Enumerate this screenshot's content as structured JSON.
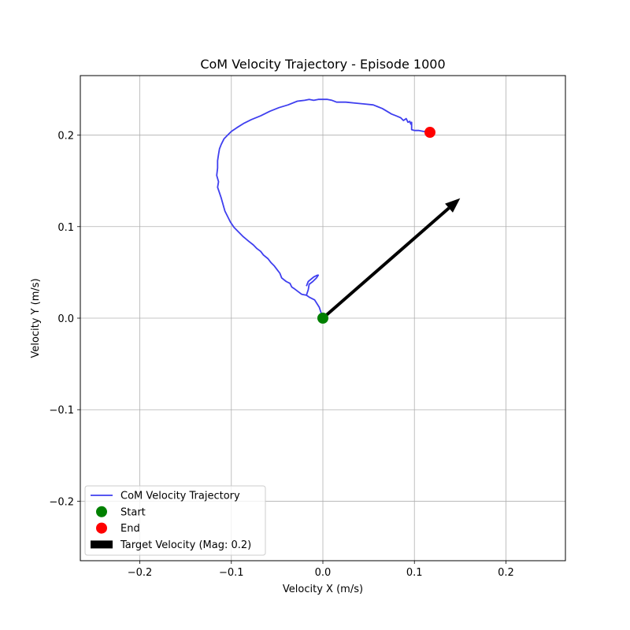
{
  "chart_data": {
    "type": "line",
    "title": "CoM Velocity Trajectory - Episode 1000",
    "xlabel": "Velocity X (m/s)",
    "ylabel": "Velocity Y (m/s)",
    "xlim": [
      -0.265,
      0.265
    ],
    "ylim": [
      -0.265,
      0.265
    ],
    "xticks": [
      -0.2,
      -0.1,
      0.0,
      0.1,
      0.2
    ],
    "xtick_labels": [
      "−0.2",
      "−0.1",
      "0.0",
      "0.1",
      "0.2"
    ],
    "yticks": [
      -0.2,
      -0.1,
      0.0,
      0.1,
      0.2
    ],
    "ytick_labels": [
      "−0.2",
      "−0.1",
      "0.0",
      "0.1",
      "0.2"
    ],
    "grid": true,
    "legend_position": "lower-left",
    "series": [
      {
        "name": "CoM Velocity Trajectory",
        "kind": "line",
        "color": "#3f3fef",
        "x": [
          0.0,
          -0.004,
          -0.009,
          -0.015,
          -0.018,
          -0.023,
          -0.027,
          -0.031,
          -0.034,
          -0.036,
          -0.04,
          -0.045,
          -0.047,
          -0.05,
          -0.053,
          -0.057,
          -0.06,
          -0.065,
          -0.068,
          -0.072,
          -0.076,
          -0.081,
          -0.087,
          -0.092,
          -0.097,
          -0.101,
          -0.104,
          -0.107,
          -0.109,
          -0.111,
          -0.113,
          -0.115,
          -0.114,
          -0.116,
          -0.115,
          -0.115,
          -0.114,
          -0.113,
          -0.111,
          -0.108,
          -0.104,
          -0.1,
          -0.094,
          -0.086,
          -0.078,
          -0.068,
          -0.058,
          -0.048,
          -0.038,
          -0.028,
          -0.02,
          -0.015,
          -0.01,
          -0.005,
          0.0,
          0.005,
          0.01,
          0.015,
          0.025,
          0.035,
          0.045,
          0.055,
          0.06,
          0.065,
          0.07,
          0.075,
          0.08,
          0.085,
          0.088,
          0.091,
          0.093,
          0.095,
          0.096,
          0.097,
          0.097,
          0.1,
          0.105,
          0.11,
          0.117
        ],
        "y": [
          0.0,
          0.012,
          0.02,
          0.023,
          0.025,
          0.026,
          0.029,
          0.032,
          0.034,
          0.038,
          0.04,
          0.044,
          0.049,
          0.053,
          0.057,
          0.061,
          0.065,
          0.069,
          0.073,
          0.076,
          0.08,
          0.084,
          0.089,
          0.094,
          0.099,
          0.105,
          0.111,
          0.117,
          0.124,
          0.131,
          0.137,
          0.143,
          0.149,
          0.156,
          0.164,
          0.172,
          0.179,
          0.185,
          0.19,
          0.196,
          0.2,
          0.204,
          0.208,
          0.213,
          0.217,
          0.221,
          0.226,
          0.23,
          0.233,
          0.237,
          0.238,
          0.239,
          0.238,
          0.239,
          0.239,
          0.239,
          0.238,
          0.236,
          0.236,
          0.235,
          0.234,
          0.233,
          0.231,
          0.229,
          0.226,
          0.223,
          0.221,
          0.219,
          0.216,
          0.218,
          0.214,
          0.215,
          0.212,
          0.214,
          0.206,
          0.205,
          0.205,
          0.204,
          0.203
        ]
      },
      {
        "name": "CoM Velocity Trajectory (hook)",
        "kind": "line",
        "color": "#3f3fef",
        "x": [
          -0.018,
          -0.016,
          -0.015,
          -0.011,
          -0.007,
          -0.005,
          -0.006,
          -0.01,
          -0.016,
          -0.018
        ],
        "y": [
          0.025,
          0.031,
          0.037,
          0.04,
          0.044,
          0.047,
          0.047,
          0.045,
          0.04,
          0.035
        ]
      },
      {
        "name": "Start",
        "kind": "marker",
        "color": "#008000",
        "x": [
          0.0
        ],
        "y": [
          0.0
        ]
      },
      {
        "name": "End",
        "kind": "marker",
        "color": "#ff0000",
        "x": [
          0.117
        ],
        "y": [
          0.203
        ]
      },
      {
        "name": "Target Velocity (Mag: 0.2)",
        "kind": "arrow",
        "color": "#000000",
        "x": [
          0.0,
          0.15
        ],
        "y": [
          0.0,
          0.131
        ]
      }
    ],
    "legend": [
      {
        "label": "CoM Velocity Trajectory",
        "kind": "line",
        "color": "#3f3fef"
      },
      {
        "label": "Start",
        "kind": "marker",
        "color": "#008000"
      },
      {
        "label": "End",
        "kind": "marker",
        "color": "#ff0000"
      },
      {
        "label": "Target Velocity (Mag: 0.2)",
        "kind": "arrow",
        "color": "#000000"
      }
    ]
  }
}
